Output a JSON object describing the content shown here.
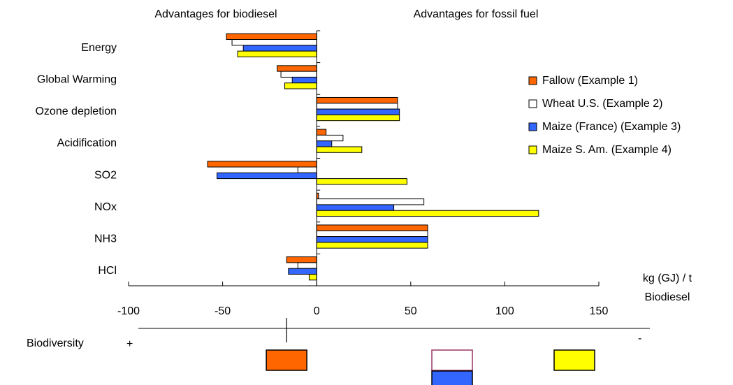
{
  "chart_data": {
    "type": "bar",
    "orientation": "horizontal",
    "header_left": "Advantages for biodiesel",
    "header_right": "Advantages for fossil fuel",
    "categories": [
      "Energy",
      "Global Warming",
      "Ozone depletion",
      "Acidification",
      "SO2",
      "NOx",
      "NH3",
      "HCl"
    ],
    "series": [
      {
        "name": "Fallow (Example 1)",
        "color": "#ff6600",
        "values": [
          -48,
          -21,
          43,
          5,
          -58,
          1,
          59,
          -16
        ]
      },
      {
        "name": "Wheat U.S. (Example 2)",
        "color": "#ffffff",
        "values": [
          -45,
          -19,
          43,
          14,
          -10,
          57,
          59,
          -10
        ]
      },
      {
        "name": "Maize (France) (Example 3)",
        "color": "#3366ff",
        "values": [
          -39,
          -13,
          44,
          8,
          -53,
          41,
          59,
          -15
        ]
      },
      {
        "name": "Maize S. Am. (Example 4)",
        "color": "#ffff00",
        "values": [
          -42,
          -17,
          44,
          24,
          48,
          118,
          59,
          -4
        ]
      }
    ],
    "xlim": [
      -100,
      150
    ],
    "x_ticks": [
      "-100",
      "-50",
      "0",
      "50",
      "100",
      "150"
    ],
    "x_tick_values": [
      -100,
      -50,
      0,
      50,
      100,
      150
    ],
    "unit_line1": "kg (GJ) / t",
    "unit_line2": "Biodiesel",
    "legend_position": "right",
    "biodiversity": {
      "label": "Biodiversity",
      "plus": "+",
      "minus": "-",
      "marker_value": -16,
      "boxes": [
        {
          "series": "Fallow (Example 1)",
          "value": -16,
          "row": 0,
          "fill": "#ff6600",
          "stroke": "#000000"
        },
        {
          "series": "Wheat U.S. (Example 2)",
          "value": 72,
          "row": 0,
          "fill": "#ffffff",
          "stroke": "#993366"
        },
        {
          "series": "Maize (France) (Example 3)",
          "value": 72,
          "row": 1,
          "fill": "#3366ff",
          "stroke": "#000000"
        },
        {
          "series": "Maize S. Am. (Example 4)",
          "value": 137,
          "row": 0,
          "fill": "#ffff00",
          "stroke": "#000000"
        }
      ]
    }
  }
}
